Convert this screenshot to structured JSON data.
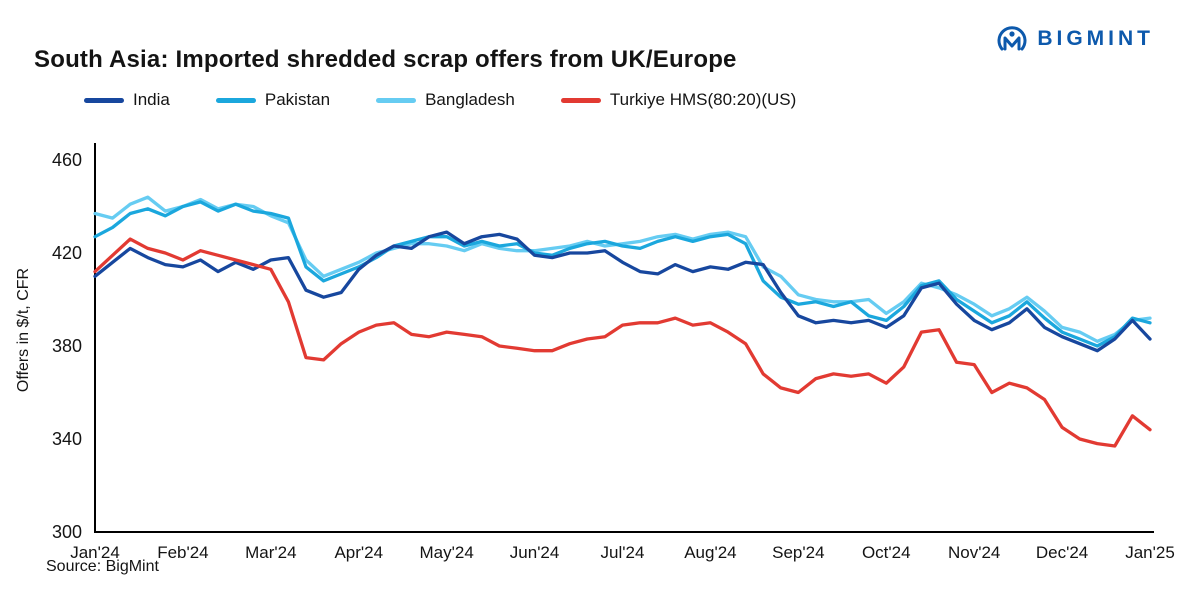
{
  "header": {
    "title": "South Asia: Imported shredded scrap offers from UK/Europe",
    "brand": "BIGMINT"
  },
  "source": "Source: BigMint",
  "colors": {
    "brand_blue": "#0d59ac",
    "axis": "#000000",
    "text": "#141414"
  },
  "chart_data": {
    "type": "line",
    "title": "South Asia: Imported shredded scrap offers from UK/Europe",
    "ylabel": "Offers in $/t, CFR",
    "xlabel": "",
    "ylim": [
      300,
      460
    ],
    "yticks": [
      300,
      340,
      380,
      420,
      460
    ],
    "grid": false,
    "legend_position": "top",
    "points_per_month": 5,
    "x_tick_labels": [
      "Jan'24",
      "Feb'24",
      "Mar'24",
      "Apr'24",
      "May'24",
      "Jun'24",
      "Jul'24",
      "Aug'24",
      "Sep'24",
      "Oct'24",
      "Nov'24",
      "Dec'24",
      "Jan'25"
    ],
    "series": [
      {
        "name": "India",
        "color": "#17479e",
        "values": [
          410,
          416,
          422,
          418,
          415,
          414,
          417,
          412,
          416,
          413,
          417,
          418,
          404,
          401,
          403,
          413,
          419,
          423,
          422,
          427,
          429,
          424,
          427,
          428,
          426,
          419,
          418,
          420,
          420,
          421,
          416,
          412,
          411,
          415,
          412,
          414,
          413,
          416,
          415,
          403,
          393,
          390,
          391,
          390,
          391,
          388,
          393,
          405,
          407,
          398,
          391,
          387,
          390,
          396,
          388,
          384,
          381,
          378,
          383,
          391,
          383
        ]
      },
      {
        "name": "Pakistan",
        "color": "#1ba7dd",
        "values": [
          427,
          431,
          437,
          439,
          436,
          440,
          442,
          438,
          441,
          438,
          437,
          435,
          414,
          408,
          411,
          414,
          418,
          423,
          425,
          427,
          427,
          423,
          425,
          423,
          424,
          420,
          419,
          422,
          424,
          425,
          423,
          422,
          425,
          427,
          425,
          427,
          428,
          424,
          408,
          401,
          398,
          399,
          397,
          399,
          393,
          391,
          397,
          406,
          408,
          400,
          395,
          390,
          393,
          399,
          392,
          386,
          383,
          380,
          384,
          392,
          390
        ]
      },
      {
        "name": "Bangladesh",
        "color": "#66ccf2",
        "values": [
          437,
          435,
          441,
          444,
          438,
          440,
          443,
          439,
          441,
          440,
          436,
          433,
          417,
          410,
          413,
          416,
          420,
          422,
          424,
          424,
          423,
          421,
          424,
          422,
          421,
          421,
          422,
          423,
          425,
          423,
          424,
          425,
          427,
          428,
          426,
          428,
          429,
          427,
          414,
          410,
          402,
          400,
          399,
          399,
          400,
          394,
          399,
          407,
          405,
          402,
          398,
          393,
          396,
          401,
          395,
          388,
          386,
          382,
          385,
          391,
          392
        ]
      },
      {
        "name": "Turkiye HMS(80:20)(US)",
        "color": "#e23a32",
        "values": [
          412,
          419,
          426,
          422,
          420,
          417,
          421,
          419,
          417,
          415,
          413,
          399,
          375,
          374,
          381,
          386,
          389,
          390,
          385,
          384,
          386,
          385,
          384,
          380,
          379,
          378,
          378,
          381,
          383,
          384,
          389,
          390,
          390,
          392,
          389,
          390,
          386,
          381,
          368,
          362,
          360,
          366,
          368,
          367,
          368,
          364,
          371,
          386,
          387,
          373,
          372,
          360,
          364,
          362,
          357,
          345,
          340,
          338,
          337,
          350,
          344
        ]
      }
    ]
  }
}
